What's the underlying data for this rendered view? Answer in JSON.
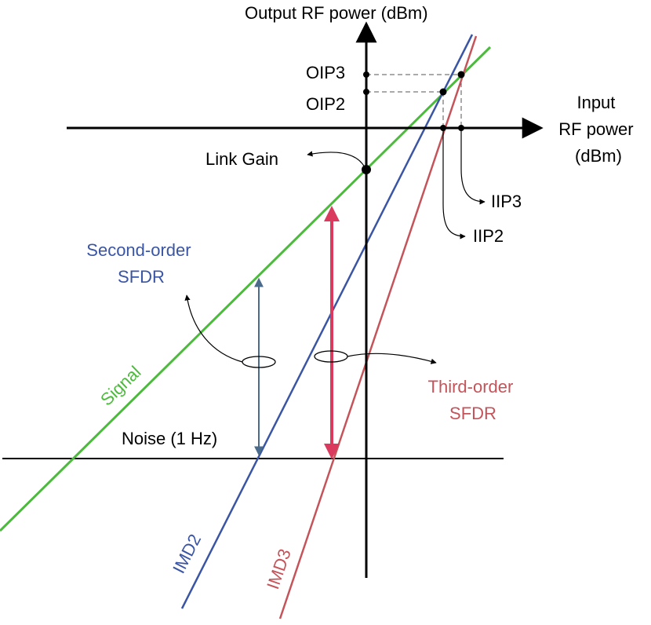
{
  "colors": {
    "axis": "#000000",
    "signal": "#4cba3c",
    "imd2": "#3a55a4",
    "imd3": "#c5545a",
    "third_order_arrow": "#d93a5e",
    "second_order_arrow": "#4b6b8c",
    "guide": "#555555"
  },
  "axes": {
    "y_label": "Output RF power (dBm)",
    "x_label_lines": [
      "Input",
      "RF power",
      "(dBm)"
    ]
  },
  "labels": {
    "oip3": "OIP3",
    "oip2": "OIP2",
    "link_gain": "Link Gain",
    "iip3": "IIP3",
    "iip2": "IIP2",
    "second_order_sfdr": [
      "Second-order",
      "SFDR"
    ],
    "third_order_sfdr": [
      "Third-order",
      "SFDR"
    ],
    "signal": "Signal",
    "noise": "Noise (1 Hz)",
    "imd2": "IMD2",
    "imd3": "IMD3"
  }
}
